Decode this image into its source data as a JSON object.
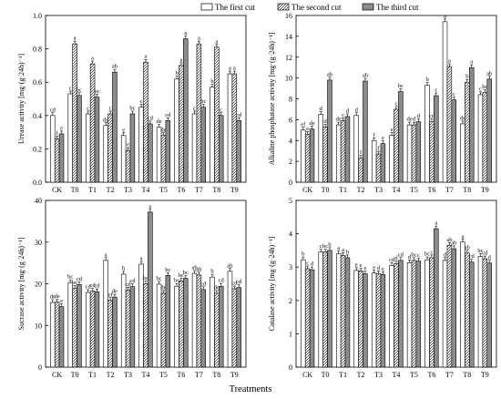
{
  "legend": {
    "entries": [
      {
        "label": "The first cut",
        "pattern": "white"
      },
      {
        "label": "The second cut",
        "pattern": "hatch"
      },
      {
        "label": "The third cut",
        "pattern": "gray"
      }
    ]
  },
  "xlabel_common": "Treatments",
  "colors": {
    "third_cut": "#8c8c8c",
    "stroke": "#000000"
  },
  "chart_data": [
    {
      "type": "bar",
      "categories": [
        "CK",
        "T0",
        "T1",
        "T2",
        "T3",
        "T4",
        "T5",
        "T6",
        "T7",
        "T8",
        "T9"
      ],
      "ylabel": "Urease activity [mg·(g·24h)⁻¹]",
      "ylim": [
        0,
        1.0
      ],
      "yticks": [
        0,
        0.2,
        0.4,
        0.6,
        0.8,
        1.0
      ],
      "ytick_labels": [
        "0.0",
        "0.2",
        "0.4",
        "0.6",
        "0.8",
        "1.0"
      ],
      "series": [
        {
          "values": [
            0.4,
            0.53,
            0.41,
            0.34,
            0.28,
            0.45,
            0.33,
            0.62,
            0.41,
            0.57,
            0.65
          ],
          "letters": [
            "cd",
            "c",
            "c",
            "de",
            "e",
            "c",
            "de",
            "b",
            "c",
            "b",
            "a"
          ]
        },
        {
          "values": [
            0.26,
            0.83,
            0.71,
            0.41,
            0.19,
            0.72,
            0.28,
            0.7,
            0.83,
            0.81,
            0.65
          ],
          "letters": [
            "f",
            "a",
            "a",
            "c",
            "e",
            "a",
            "de",
            "a",
            "a",
            "a",
            "a"
          ]
        },
        {
          "values": [
            0.29,
            0.52,
            0.51,
            0.66,
            0.41,
            0.35,
            0.37,
            0.86,
            0.45,
            0.4,
            0.37
          ],
          "letters": [
            "e",
            "bc",
            "bc",
            "ab",
            "bc",
            "cd",
            "cd",
            "a",
            "bc",
            "c",
            "cd"
          ]
        }
      ]
    },
    {
      "type": "bar",
      "categories": [
        "CK",
        "T0",
        "T1",
        "T2",
        "T3",
        "T4",
        "T5",
        "T6",
        "T7",
        "T8",
        "T9"
      ],
      "ylabel": "Alkaline phosphatase activity [mg·(g·24h)⁻¹]",
      "ylim": [
        0,
        16
      ],
      "yticks": [
        0,
        2,
        4,
        6,
        8,
        10,
        12,
        14,
        16
      ],
      "ytick_labels": [
        "0",
        "2",
        "4",
        "6",
        "8",
        "10",
        "12",
        "14",
        "16"
      ],
      "series": [
        {
          "values": [
            5.0,
            6.5,
            5.5,
            6.4,
            4.0,
            4.5,
            5.5,
            9.3,
            15.4,
            5.6,
            8.4
          ],
          "letters": [
            "ef",
            "d",
            "de",
            "d",
            "f",
            "e",
            "de",
            "b",
            "a",
            "de",
            "c"
          ]
        },
        {
          "values": [
            4.6,
            5.3,
            5.9,
            2.3,
            2.7,
            7.0,
            5.5,
            5.8,
            11.1,
            9.6,
            8.6
          ],
          "letters": [
            "e",
            "d",
            "c",
            "f",
            "f",
            "c",
            "d",
            "cd",
            "a",
            "b",
            "bc"
          ]
        },
        {
          "values": [
            5.1,
            9.8,
            6.3,
            9.7,
            3.7,
            8.7,
            5.8,
            8.3,
            7.9,
            11.0,
            9.9
          ],
          "letters": [
            "de",
            "ab",
            "d",
            "ab",
            "e",
            "bc",
            "d",
            "c",
            "c",
            "a",
            "ab"
          ]
        }
      ]
    },
    {
      "type": "bar",
      "categories": [
        "CK",
        "T0",
        "T1",
        "T2",
        "T3",
        "T4",
        "T5",
        "T6",
        "T7",
        "T8",
        "T9"
      ],
      "ylabel": "Sucrase activity [mg·(g·24h)⁻¹]",
      "ylim": [
        0,
        40
      ],
      "yticks": [
        0,
        10,
        20,
        30,
        40
      ],
      "ytick_labels": [
        "0",
        "10",
        "20",
        "30",
        "40"
      ],
      "series": [
        {
          "values": [
            15.5,
            20.3,
            17.9,
            25.6,
            22.3,
            24.7,
            19.9,
            19.4,
            22.5,
            21.6,
            23.0
          ],
          "letters": [
            "de",
            "bc",
            "cd",
            "a",
            "b",
            "a",
            "bc",
            "bc",
            "ab",
            "b",
            "ab"
          ]
        },
        {
          "values": [
            15.6,
            18.9,
            18.2,
            16.0,
            18.5,
            20.0,
            17.7,
            20.7,
            22.1,
            17.7,
            18.8
          ],
          "letters": [
            "de",
            "bc",
            "cd",
            "ef",
            "cd",
            "bc",
            "de",
            "bc",
            "ab",
            "de",
            "cd"
          ]
        },
        {
          "values": [
            14.5,
            19.8,
            18.1,
            16.8,
            19.3,
            37.2,
            22.0,
            21.3,
            18.6,
            19.4,
            19.1
          ],
          "letters": [
            "e",
            "cd",
            "cd",
            "de",
            "cd",
            "a",
            "bc",
            "bc",
            "cd",
            "cd",
            "cd"
          ]
        }
      ]
    },
    {
      "type": "bar",
      "categories": [
        "CK",
        "T0",
        "T1",
        "T2",
        "T3",
        "T4",
        "T5",
        "T6",
        "T7",
        "T8",
        "T9"
      ],
      "ylabel": "Catalase activity [mg·(g·24h)⁻¹]",
      "ylim": [
        0,
        5
      ],
      "yticks": [
        0,
        1,
        2,
        3,
        4,
        5
      ],
      "ytick_labels": [
        "0",
        "1",
        "2",
        "3",
        "4",
        "5"
      ],
      "series": [
        {
          "values": [
            3.22,
            3.45,
            3.4,
            2.9,
            2.82,
            3.05,
            3.13,
            3.22,
            3.2,
            3.75,
            3.32
          ],
          "letters": [
            "b",
            "c",
            "a",
            "e",
            "e",
            "cd",
            "d",
            "bc",
            "d",
            "a",
            "bc"
          ]
        },
        {
          "values": [
            2.95,
            3.45,
            3.35,
            2.88,
            2.8,
            3.1,
            3.2,
            3.28,
            3.65,
            3.42,
            3.25
          ],
          "letters": [
            "c",
            "bc",
            "a",
            "e",
            "d",
            "d",
            "bc",
            "c",
            "ab",
            "ab",
            "cd"
          ]
        },
        {
          "values": [
            2.92,
            3.5,
            3.28,
            2.8,
            2.78,
            3.2,
            3.18,
            4.15,
            3.55,
            3.15,
            3.12
          ],
          "letters": [
            "d",
            "b",
            "b",
            "e",
            "e",
            "cd",
            "c",
            "a",
            "ab",
            "cd",
            "d"
          ]
        }
      ]
    }
  ]
}
